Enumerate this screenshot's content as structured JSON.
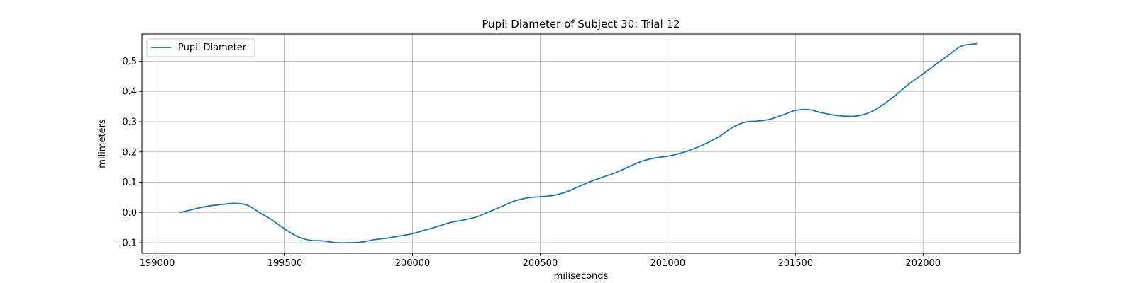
{
  "chart_data": {
    "type": "line",
    "title": "Pupil Diameter of Subject 30: Trial 12",
    "xlabel": "miliseconds",
    "ylabel": "milimeters",
    "xlim": [
      198940,
      202380
    ],
    "ylim": [
      -0.135,
      0.59
    ],
    "xticks": [
      199000,
      199500,
      200000,
      200500,
      201000,
      201500,
      202000
    ],
    "yticks": [
      -0.1,
      0.0,
      0.1,
      0.2,
      0.3,
      0.4,
      0.5
    ],
    "xtick_labels": [
      "199000",
      "199500",
      "200000",
      "200500",
      "201000",
      "201500",
      "202000"
    ],
    "ytick_labels": [
      "−0.1",
      "0.0",
      "0.1",
      "0.2",
      "0.3",
      "0.4",
      "0.5"
    ],
    "grid": true,
    "legend": {
      "position": "top-left",
      "entries": [
        "Pupil Diameter"
      ]
    },
    "series": [
      {
        "name": "Pupil Diameter",
        "color": "#1f77b4",
        "x": [
          199090,
          199150,
          199200,
          199250,
          199300,
          199350,
          199400,
          199450,
          199500,
          199550,
          199600,
          199650,
          199700,
          199750,
          199800,
          199850,
          199900,
          199950,
          200000,
          200050,
          200100,
          200150,
          200200,
          200250,
          200300,
          200350,
          200400,
          200450,
          200500,
          200550,
          200600,
          200650,
          200700,
          200750,
          200800,
          200850,
          200900,
          200950,
          201000,
          201050,
          201100,
          201150,
          201200,
          201250,
          201300,
          201350,
          201400,
          201450,
          201500,
          201550,
          201600,
          201650,
          201700,
          201750,
          201800,
          201850,
          201900,
          201950,
          202000,
          202050,
          202100,
          202150,
          202210
        ],
        "values": [
          0.0,
          0.012,
          0.021,
          0.026,
          0.03,
          0.025,
          0.0,
          -0.025,
          -0.055,
          -0.08,
          -0.092,
          -0.094,
          -0.1,
          -0.1,
          -0.098,
          -0.09,
          -0.085,
          -0.078,
          -0.07,
          -0.058,
          -0.046,
          -0.033,
          -0.025,
          -0.015,
          0.002,
          0.02,
          0.038,
          0.048,
          0.052,
          0.056,
          0.067,
          0.085,
          0.103,
          0.118,
          0.133,
          0.152,
          0.17,
          0.18,
          0.186,
          0.196,
          0.21,
          0.228,
          0.25,
          0.279,
          0.298,
          0.302,
          0.308,
          0.322,
          0.337,
          0.34,
          0.33,
          0.322,
          0.318,
          0.32,
          0.334,
          0.36,
          0.393,
          0.428,
          0.458,
          0.49,
          0.52,
          0.55,
          0.558
        ]
      }
    ]
  }
}
